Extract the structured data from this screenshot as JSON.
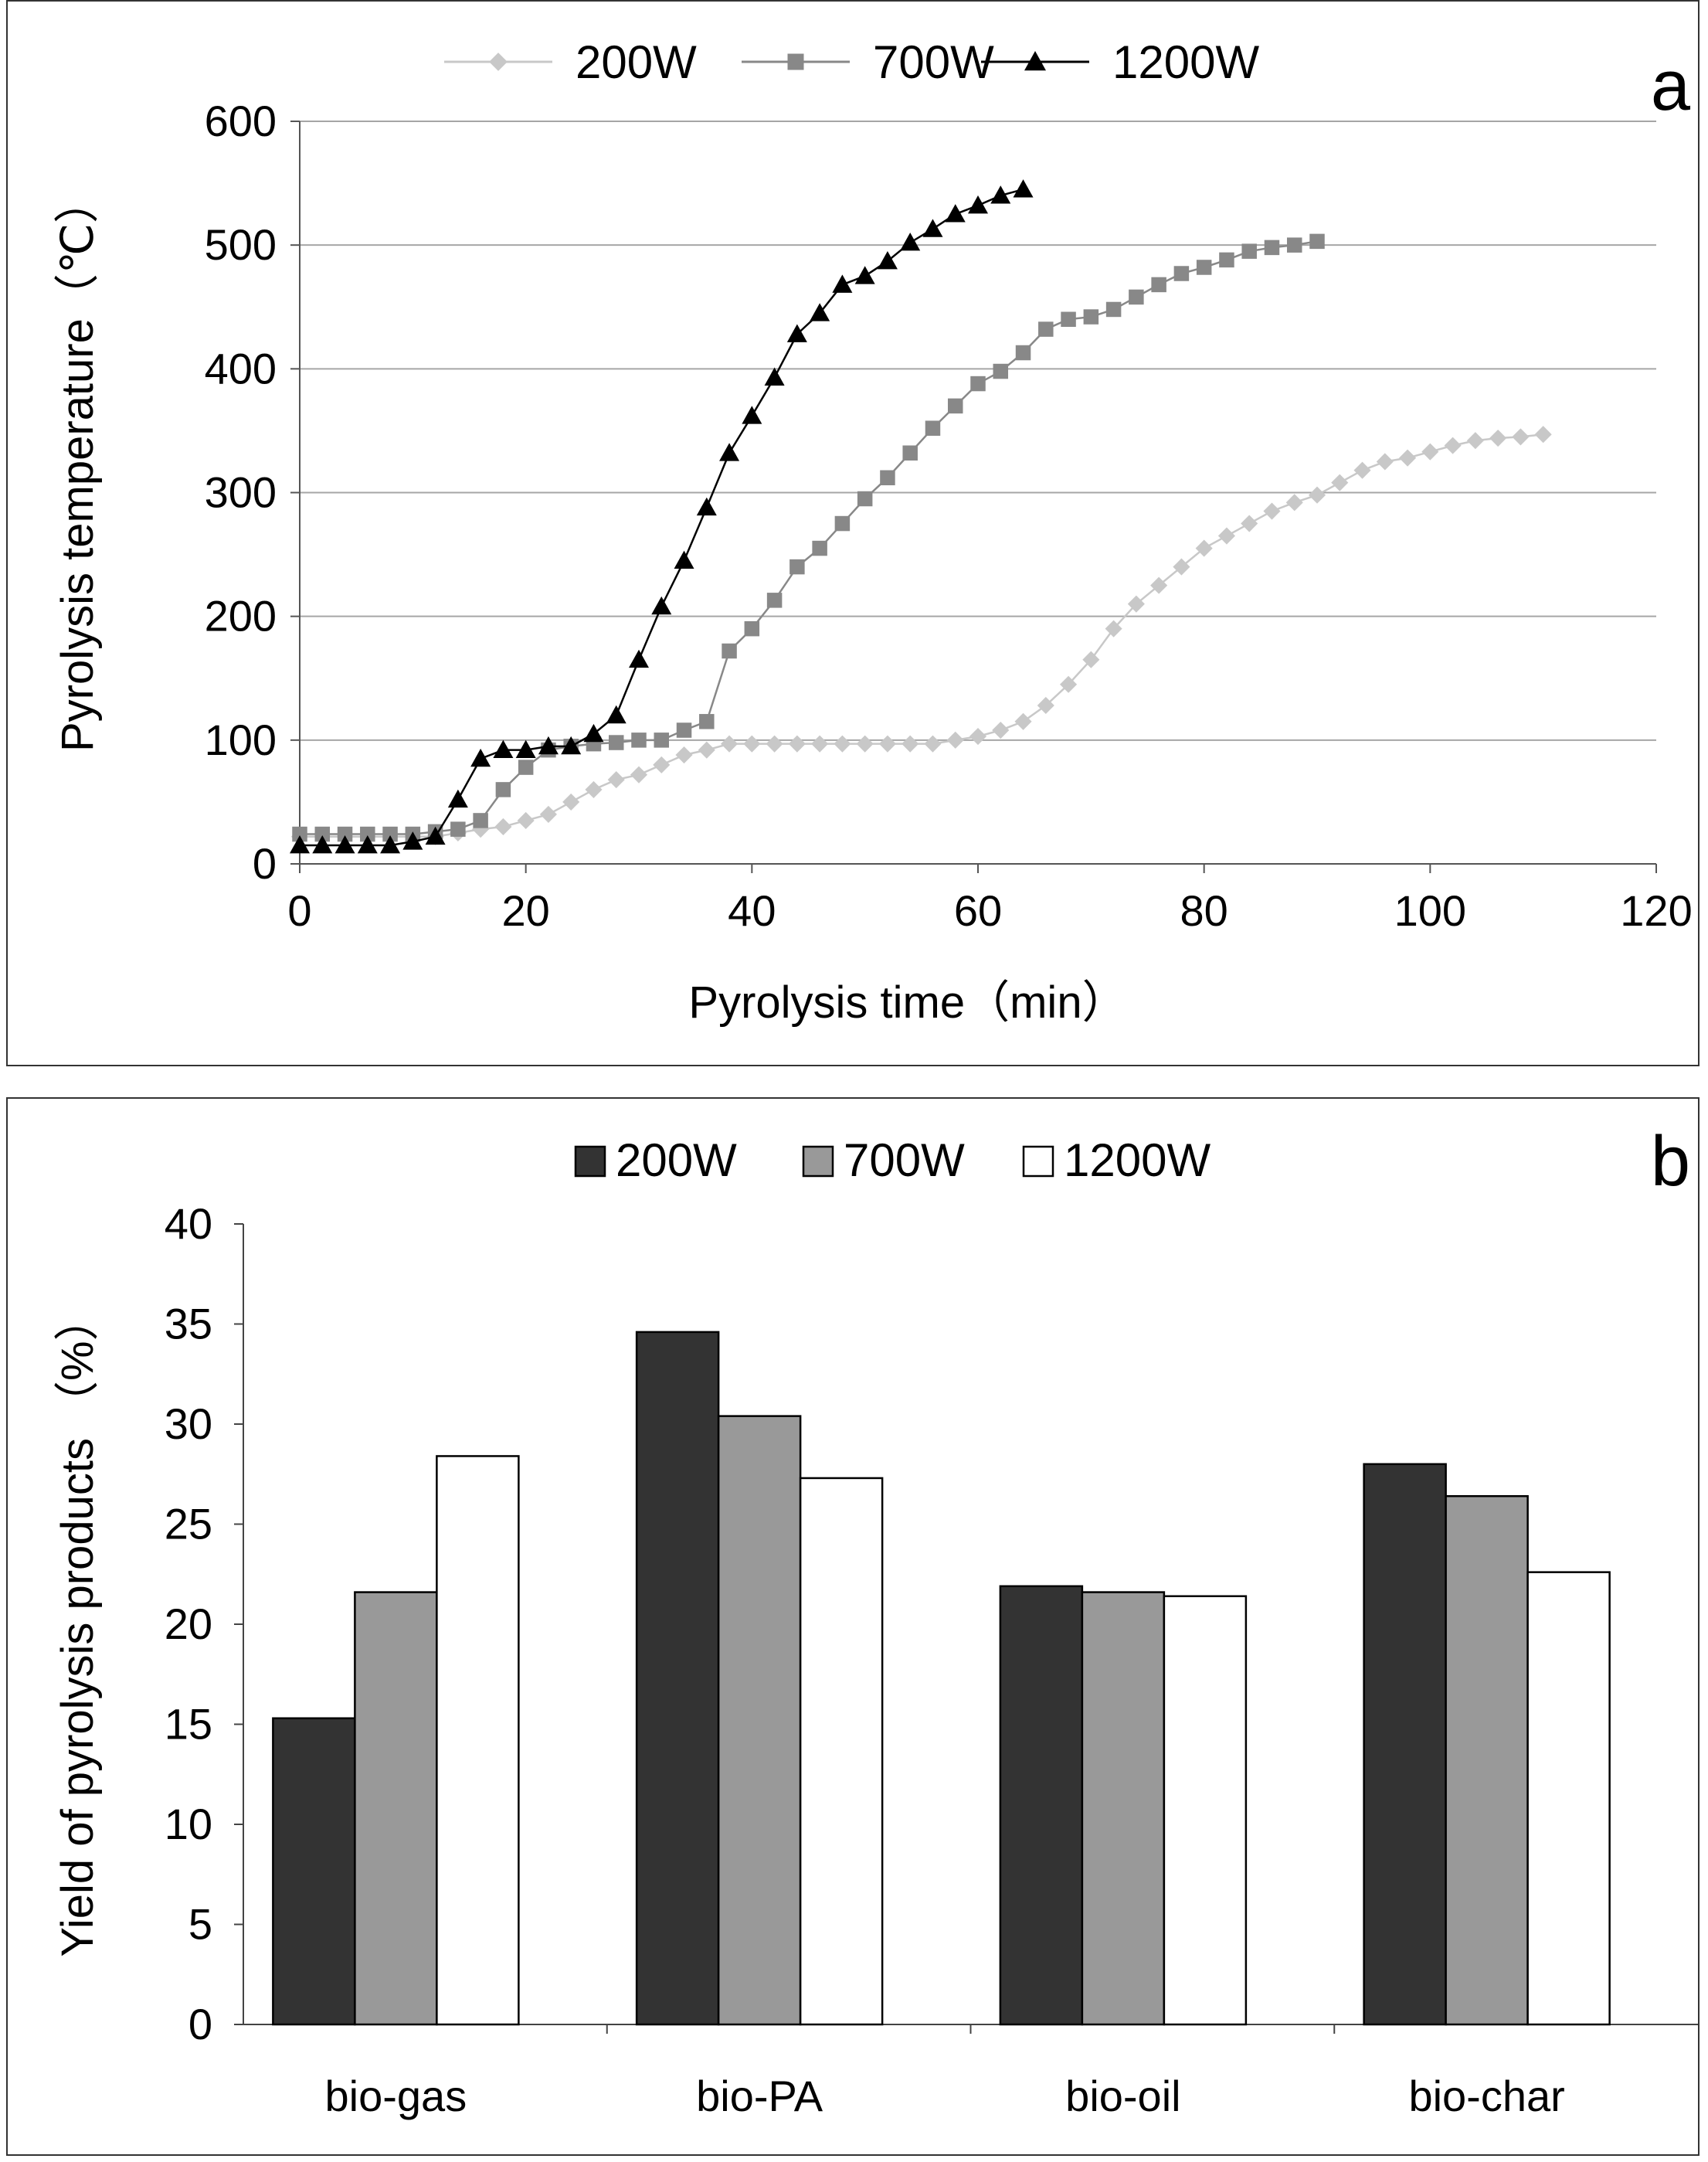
{
  "chart_data": [
    {
      "panel_label": "a",
      "type": "line",
      "xlabel": "Pyrolysis time（min）",
      "ylabel": "Pyrolysis temperature（℃）",
      "xlim": [
        0,
        120
      ],
      "ylim": [
        0,
        600
      ],
      "x_ticks": [
        "0",
        "20",
        "40",
        "60",
        "80",
        "100",
        "120"
      ],
      "y_ticks": [
        "0",
        "100",
        "200",
        "300",
        "400",
        "500",
        "600"
      ],
      "grid": "horizontal",
      "legend_position": "top",
      "series": [
        {
          "name": "200W",
          "marker": "diamond",
          "color": "#c8c8c8",
          "points": [
            [
              0,
              22
            ],
            [
              2,
              22
            ],
            [
              4,
              22
            ],
            [
              6,
              22
            ],
            [
              8,
              22
            ],
            [
              10,
              22
            ],
            [
              12,
              22
            ],
            [
              14,
              25
            ],
            [
              16,
              28
            ],
            [
              18,
              30
            ],
            [
              20,
              35
            ],
            [
              22,
              40
            ],
            [
              24,
              50
            ],
            [
              26,
              60
            ],
            [
              28,
              68
            ],
            [
              30,
              72
            ],
            [
              32,
              80
            ],
            [
              34,
              88
            ],
            [
              36,
              92
            ],
            [
              38,
              97
            ],
            [
              40,
              97
            ],
            [
              42,
              97
            ],
            [
              44,
              97
            ],
            [
              46,
              97
            ],
            [
              48,
              97
            ],
            [
              50,
              97
            ],
            [
              52,
              97
            ],
            [
              54,
              97
            ],
            [
              56,
              97
            ],
            [
              58,
              100
            ],
            [
              60,
              103
            ],
            [
              62,
              108
            ],
            [
              64,
              115
            ],
            [
              66,
              128
            ],
            [
              68,
              145
            ],
            [
              70,
              165
            ],
            [
              72,
              190
            ],
            [
              74,
              210
            ],
            [
              76,
              225
            ],
            [
              78,
              240
            ],
            [
              80,
              255
            ],
            [
              82,
              265
            ],
            [
              84,
              275
            ],
            [
              86,
              285
            ],
            [
              88,
              292
            ],
            [
              90,
              298
            ],
            [
              92,
              308
            ],
            [
              94,
              318
            ],
            [
              96,
              325
            ],
            [
              98,
              328
            ],
            [
              100,
              333
            ],
            [
              102,
              338
            ],
            [
              104,
              342
            ],
            [
              106,
              344
            ],
            [
              108,
              345
            ],
            [
              110,
              347
            ]
          ]
        },
        {
          "name": "700W",
          "marker": "square",
          "color": "#888888",
          "points": [
            [
              0,
              24
            ],
            [
              2,
              24
            ],
            [
              4,
              24
            ],
            [
              6,
              24
            ],
            [
              8,
              24
            ],
            [
              10,
              24
            ],
            [
              12,
              26
            ],
            [
              14,
              28
            ],
            [
              16,
              35
            ],
            [
              18,
              60
            ],
            [
              20,
              78
            ],
            [
              22,
              92
            ],
            [
              24,
              95
            ],
            [
              26,
              97
            ],
            [
              28,
              98
            ],
            [
              30,
              100
            ],
            [
              32,
              100
            ],
            [
              34,
              108
            ],
            [
              36,
              115
            ],
            [
              38,
              172
            ],
            [
              40,
              190
            ],
            [
              42,
              213
            ],
            [
              44,
              240
            ],
            [
              46,
              255
            ],
            [
              48,
              275
            ],
            [
              50,
              295
            ],
            [
              52,
              312
            ],
            [
              54,
              332
            ],
            [
              56,
              352
            ],
            [
              58,
              370
            ],
            [
              60,
              388
            ],
            [
              62,
              398
            ],
            [
              64,
              413
            ],
            [
              66,
              432
            ],
            [
              68,
              440
            ],
            [
              70,
              442
            ],
            [
              72,
              448
            ],
            [
              74,
              458
            ],
            [
              76,
              468
            ],
            [
              78,
              477
            ],
            [
              80,
              482
            ],
            [
              82,
              488
            ],
            [
              84,
              495
            ],
            [
              86,
              498
            ],
            [
              88,
              500
            ],
            [
              90,
              503
            ]
          ]
        },
        {
          "name": "1200W",
          "marker": "triangle",
          "color": "#000000",
          "points": [
            [
              0,
              15
            ],
            [
              2,
              15
            ],
            [
              4,
              15
            ],
            [
              6,
              15
            ],
            [
              8,
              15
            ],
            [
              10,
              18
            ],
            [
              12,
              22
            ],
            [
              14,
              52
            ],
            [
              16,
              85
            ],
            [
              18,
              92
            ],
            [
              20,
              92
            ],
            [
              22,
              95
            ],
            [
              24,
              95
            ],
            [
              26,
              105
            ],
            [
              28,
              120
            ],
            [
              30,
              165
            ],
            [
              32,
              208
            ],
            [
              34,
              245
            ],
            [
              36,
              288
            ],
            [
              38,
              332
            ],
            [
              40,
              362
            ],
            [
              42,
              393
            ],
            [
              44,
              428
            ],
            [
              46,
              445
            ],
            [
              48,
              468
            ],
            [
              50,
              475
            ],
            [
              52,
              487
            ],
            [
              54,
              502
            ],
            [
              56,
              513
            ],
            [
              58,
              525
            ],
            [
              60,
              532
            ],
            [
              62,
              540
            ],
            [
              64,
              545
            ]
          ]
        }
      ]
    },
    {
      "panel_label": "b",
      "type": "bar",
      "ylabel": "Yield of pyrolysis products （%）",
      "xlabel": "",
      "ylim": [
        0,
        40
      ],
      "y_ticks": [
        "0",
        "5",
        "10",
        "15",
        "20",
        "25",
        "30",
        "35",
        "40"
      ],
      "grid": "none",
      "legend_position": "top",
      "categories": [
        "bio-gas",
        "bio-PA",
        "bio-oil",
        "bio-char"
      ],
      "series": [
        {
          "name": "200W",
          "color": "#333333",
          "values": [
            15.3,
            34.6,
            21.9,
            28.0
          ]
        },
        {
          "name": "700W",
          "color": "#999999",
          "values": [
            21.6,
            30.4,
            21.6,
            26.4
          ]
        },
        {
          "name": "1200W",
          "color": "#ffffff",
          "values": [
            28.4,
            27.3,
            21.4,
            22.6
          ]
        }
      ]
    }
  ]
}
